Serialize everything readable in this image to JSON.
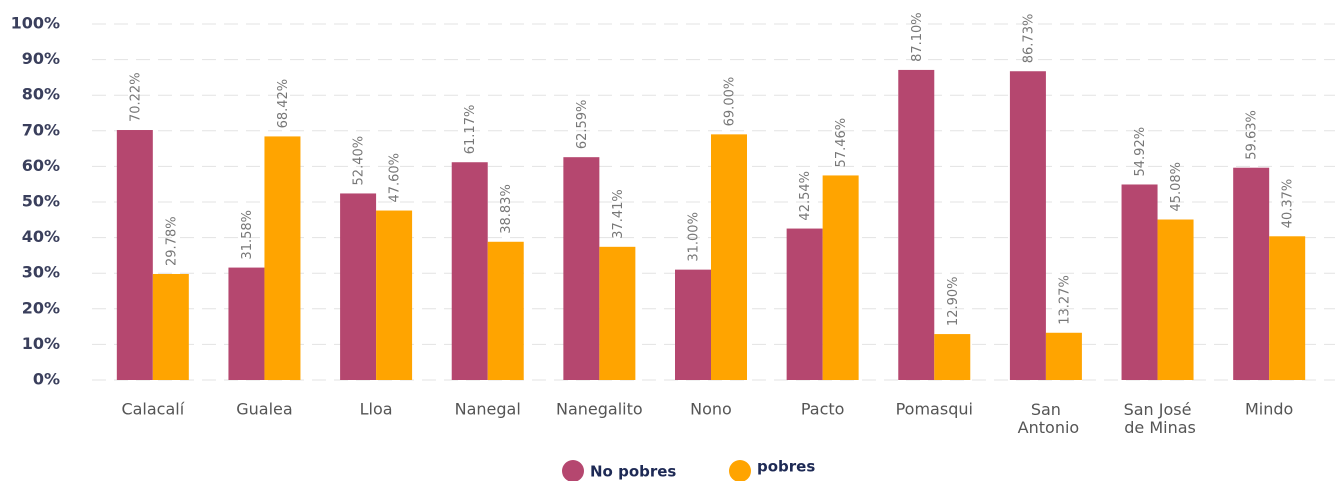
{
  "chart_data": {
    "type": "bar",
    "categories": [
      "Calacalí",
      "Gualea",
      "Lloa",
      "Nanegal",
      "Nanegalito",
      "Nono",
      "Pacto",
      "Pomasqui",
      "San Antonio",
      "San José de Minas",
      "Mindo"
    ],
    "series": [
      {
        "name": "No pobres",
        "color": "#b5476f",
        "values": [
          70.22,
          31.58,
          52.4,
          61.17,
          62.59,
          31.0,
          42.54,
          87.1,
          86.73,
          54.92,
          59.63
        ],
        "value_labels": [
          "70.22%",
          "31.58%",
          "52.40%",
          "61.17%",
          "62.59%",
          "31.00%",
          "42.54%",
          "87.10%",
          "86.73%",
          "54.92%",
          "59.63%"
        ]
      },
      {
        "name": "pobres",
        "color": "#ffa400",
        "values": [
          29.78,
          68.42,
          47.6,
          38.83,
          37.41,
          69.0,
          57.46,
          12.9,
          13.27,
          45.08,
          40.37
        ],
        "value_labels": [
          "29.78%",
          "68.42%",
          "47.60%",
          "38.83%",
          "37.41%",
          "69.00%",
          "57.46%",
          "12.90%",
          "13.27%",
          "45.08%",
          "40.37%"
        ]
      }
    ],
    "ylim": [
      0,
      100
    ],
    "yticks": [
      {
        "value": 0,
        "label": "0%"
      },
      {
        "value": 10,
        "label": "10%"
      },
      {
        "value": 20,
        "label": "20%"
      },
      {
        "value": 30,
        "label": "30%"
      },
      {
        "value": 40,
        "label": "40%"
      },
      {
        "value": 50,
        "label": "50%"
      },
      {
        "value": 60,
        "label": "60%"
      },
      {
        "value": 70,
        "label": "70%"
      },
      {
        "value": 80,
        "label": "80%"
      },
      {
        "value": 90,
        "label": "90%"
      },
      {
        "value": 100,
        "label": "100%"
      }
    ],
    "grid": true
  }
}
